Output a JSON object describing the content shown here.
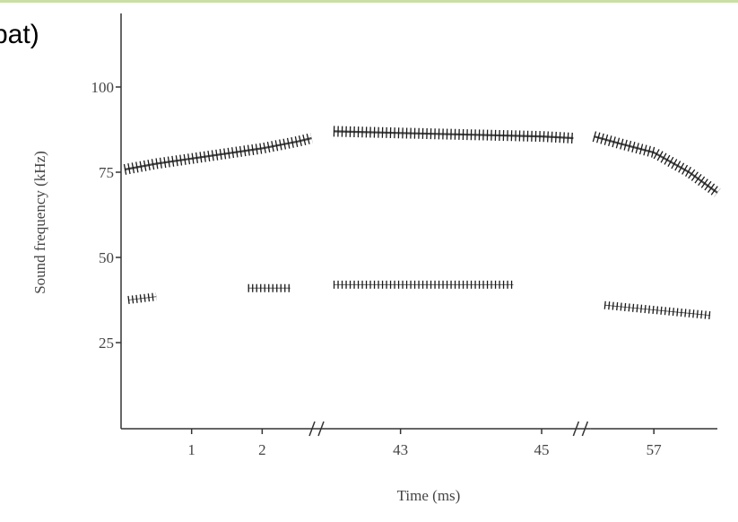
{
  "chart_data": {
    "type": "line",
    "title": "bat)",
    "xlabel": "Time (ms)",
    "ylabel": "Sound frequency (kHz)",
    "ylim": [
      0,
      120
    ],
    "yticks": [
      25,
      50,
      75,
      100
    ],
    "x_segments": [
      {
        "xlim": [
          0,
          2.72
        ],
        "xticks": [
          1,
          2
        ]
      },
      {
        "xlim": [
          41.95,
          45.5
        ],
        "xticks": [
          43,
          45
        ]
      },
      {
        "xlim": [
          56.1,
          57.9
        ],
        "xticks": [
          57
        ]
      }
    ],
    "series": [
      {
        "color": "#1a1a1a",
        "x": [
          0.05,
          0.5,
          1,
          1.5,
          2,
          2.5,
          2.7,
          42.0,
          42.05,
          43,
          44,
          45,
          45.45,
          56.1,
          56.15,
          56.5,
          57,
          57.5,
          57.9
        ],
        "values": [
          75.8,
          77.5,
          79,
          80.5,
          82,
          84,
          85,
          null,
          87,
          86.5,
          86,
          85.5,
          85,
          null,
          85.5,
          83.5,
          80.8,
          75,
          69
        ]
      },
      {
        "color": "#1a1a1a",
        "x": [
          0.1,
          0.5,
          1.5,
          1.8,
          2.4,
          2.45,
          42.05,
          43,
          44,
          44.6,
          44.7,
          45.2,
          45.3,
          56.3,
          56.8,
          57.3,
          57.8
        ],
        "values": [
          37.5,
          38.5,
          null,
          41,
          41,
          null,
          42,
          42,
          42,
          42,
          null,
          41.5,
          null,
          36,
          35,
          34,
          33
        ]
      }
    ]
  }
}
